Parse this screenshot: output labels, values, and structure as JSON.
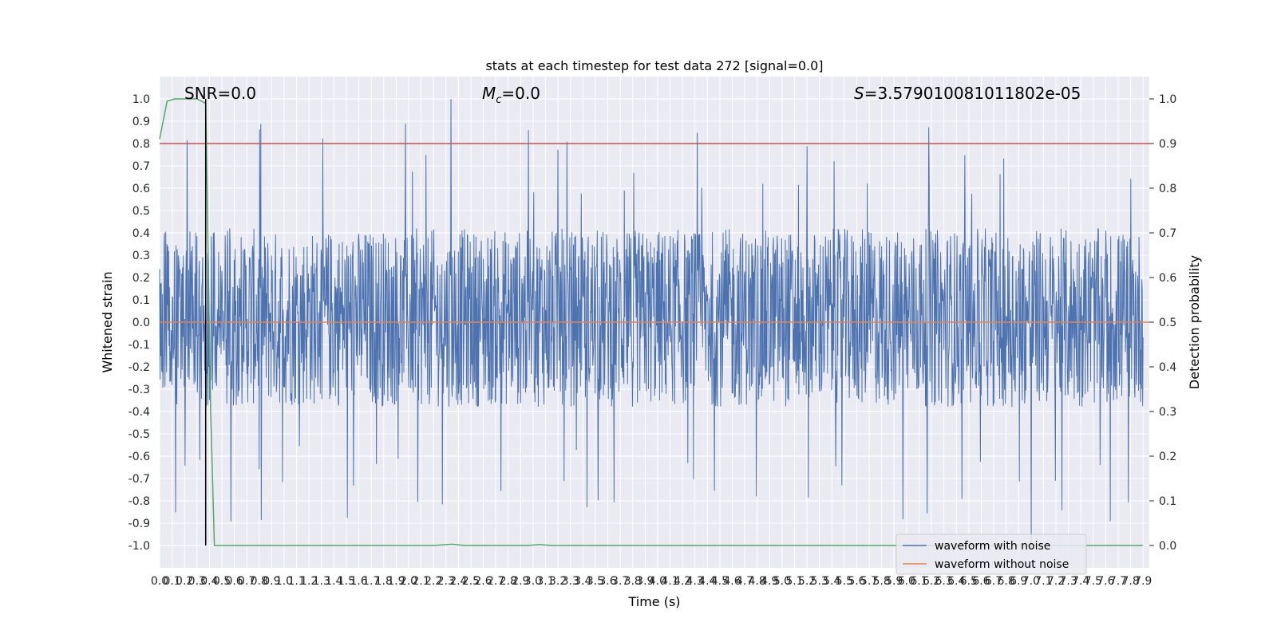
{
  "chart_data": {
    "type": "line",
    "title": "stats at each timestep for test data 272 [signal=0.0]",
    "xlabel": "Time (s)",
    "ylabel": "Whitened strain",
    "y2label": "Detection probability",
    "xlim": [
      0.0,
      7.95
    ],
    "ylim": [
      -1.1,
      1.1
    ],
    "y2lim": [
      -0.05,
      1.05
    ],
    "x_ticks": [
      "0.0",
      "0.1",
      "0.2",
      "0.3",
      "0.4",
      "0.5",
      "0.6",
      "0.7",
      "0.8",
      "0.9",
      "1.0",
      "1.1",
      "1.2",
      "1.3",
      "1.4",
      "1.5",
      "1.6",
      "1.7",
      "1.8",
      "1.9",
      "2.0",
      "2.1",
      "2.2",
      "2.3",
      "2.4",
      "2.5",
      "2.6",
      "2.7",
      "2.8",
      "2.9",
      "3.0",
      "3.1",
      "3.2",
      "3.3",
      "3.4",
      "3.5",
      "3.6",
      "3.7",
      "3.8",
      "3.9",
      "4.0",
      "4.1",
      "4.2",
      "4.3",
      "4.4",
      "4.5",
      "4.6",
      "4.7",
      "4.8",
      "4.9",
      "5.0",
      "5.1",
      "5.2",
      "5.3",
      "5.4",
      "5.5",
      "5.6",
      "5.7",
      "5.8",
      "5.9",
      "6.0",
      "6.1",
      "6.2",
      "6.3",
      "6.4",
      "6.5",
      "6.6",
      "6.7",
      "6.8",
      "6.9",
      "7.0",
      "7.1",
      "7.2",
      "7.3",
      "7.4",
      "7.5",
      "7.6",
      "7.7",
      "7.8",
      "7.9"
    ],
    "y_ticks": [
      "1.0",
      "0.9",
      "0.8",
      "0.7",
      "0.6",
      "0.5",
      "0.4",
      "0.3",
      "0.2",
      "0.1",
      "0.0",
      "-0.1",
      "-0.2",
      "-0.3",
      "-0.4",
      "-0.5",
      "-0.6",
      "-0.7",
      "-0.8",
      "-0.9",
      "-1.0"
    ],
    "y2_ticks": [
      "1.0",
      "0.9",
      "0.8",
      "0.7",
      "0.6",
      "0.5",
      "0.4",
      "0.3",
      "0.2",
      "0.1",
      "0.0"
    ],
    "annotations": {
      "snr": "SNR=0.0",
      "mc_symbol": "M",
      "mc_sub": "c",
      "mc_value": "=0.0",
      "s_symbol": "S",
      "s_value": "=3.579010081011802e-05"
    },
    "threshold": {
      "y2": 0.9,
      "color": "#c44e52"
    },
    "vline_x": 0.37,
    "series": [
      {
        "name": "waveform with noise",
        "color": "#4c72b0",
        "noise_band": [
          -0.38,
          0.42
        ],
        "extreme_range": [
          -1.02,
          1.0
        ]
      },
      {
        "name": "waveform without noise",
        "color": "#dd8452",
        "y": 0.0
      },
      {
        "color": "#55a868",
        "axis": "y2",
        "points": [
          [
            0.0,
            0.91
          ],
          [
            0.06,
            0.995
          ],
          [
            0.12,
            1.0
          ],
          [
            0.3,
            1.0
          ],
          [
            0.37,
            0.99
          ],
          [
            0.41,
            0.3
          ],
          [
            0.44,
            0.0
          ],
          [
            2.2,
            0.0
          ],
          [
            2.35,
            0.003
          ],
          [
            2.45,
            0.0
          ],
          [
            2.95,
            0.0
          ],
          [
            3.05,
            0.002
          ],
          [
            3.15,
            0.0
          ],
          [
            7.9,
            0.0
          ]
        ]
      }
    ],
    "legend": {
      "position": "lower-right"
    },
    "grid": true
  }
}
